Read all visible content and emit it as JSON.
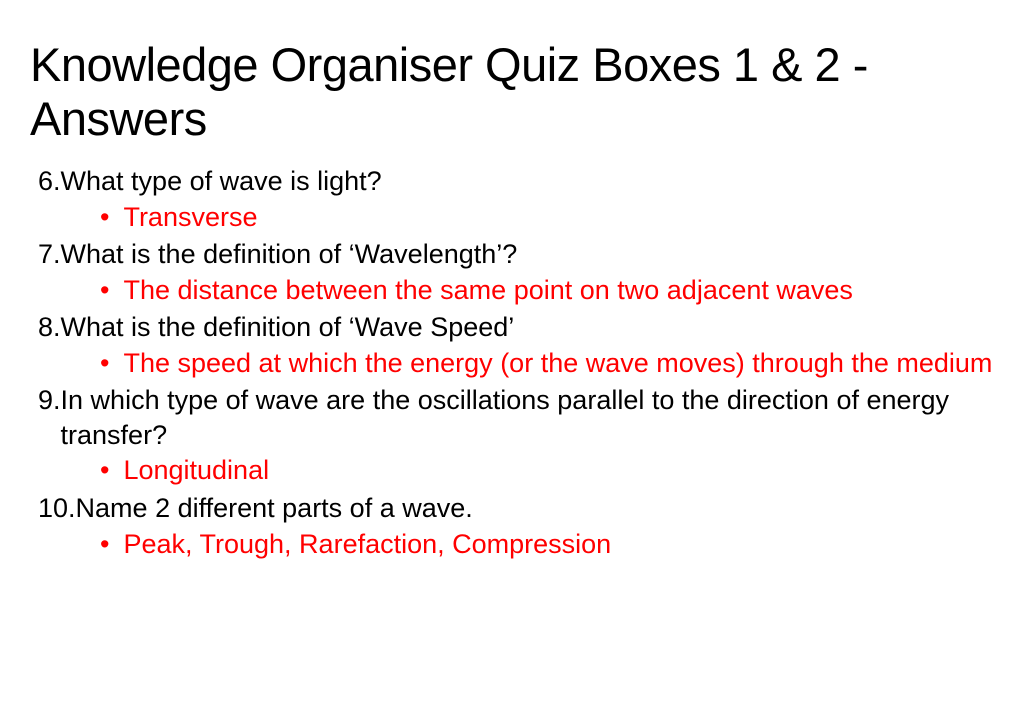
{
  "title": "Knowledge Organiser Quiz Boxes 1 & 2 - Answers",
  "title_fontsize": 47,
  "question_fontsize": 27,
  "answer_fontsize": 27,
  "question_color": "#000000",
  "answer_color": "#ff0000",
  "background_color": "#ffffff",
  "items": [
    {
      "number": "6.",
      "question": "What type of wave is light?",
      "answer": "Transverse"
    },
    {
      "number": "7.",
      "question": "What is the definition of ‘Wavelength’?",
      "answer": "The distance between the same point on two adjacent waves"
    },
    {
      "number": "8.",
      "question": "What is the definition of ‘Wave Speed’",
      "answer": "The speed at which the energy (or the wave moves) through the medium"
    },
    {
      "number": "9.",
      "question": "In which type of wave are the oscillations parallel to the direction of energy transfer?",
      "answer": "Longitudinal"
    },
    {
      "number": "10.",
      "question": "Name 2 different parts of a wave.",
      "answer": "Peak, Trough, Rarefaction, Compression"
    }
  ]
}
